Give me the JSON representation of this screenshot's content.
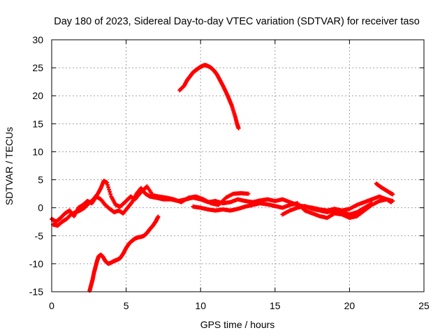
{
  "chart_data": {
    "type": "scatter",
    "title": "Day 180 of 2023, Sidereal Day-to-day VTEC variation (SDTVAR) for receiver taso",
    "xlabel": "GPS time / hours",
    "ylabel": "SDTVAR / TECUs",
    "xlim": [
      0,
      25
    ],
    "ylim": [
      -15,
      30
    ],
    "x_ticks": [
      0,
      5,
      10,
      15,
      20,
      25
    ],
    "y_ticks": [
      -15,
      -10,
      -5,
      0,
      5,
      10,
      15,
      20,
      25,
      30
    ],
    "grid": true,
    "marker": "plus",
    "series_color": "#ff0000",
    "series": [
      {
        "name": "track-main-band-a",
        "points": [
          [
            0,
            -2
          ],
          [
            0.3,
            -2.5
          ],
          [
            0.6,
            -1.8
          ],
          [
            0.9,
            -1
          ],
          [
            1.2,
            -0.5
          ],
          [
            1.5,
            -1.5
          ],
          [
            1.8,
            0
          ],
          [
            2.1,
            0.5
          ],
          [
            2.4,
            1.2
          ],
          [
            2.7,
            0.8
          ],
          [
            3.0,
            2
          ],
          [
            3.3,
            1.5
          ],
          [
            3.6,
            0.5
          ],
          [
            3.9,
            -0.2
          ],
          [
            4.2,
            -0.8
          ],
          [
            4.5,
            -0.5
          ],
          [
            4.8,
            -1
          ],
          [
            5.1,
            0
          ],
          [
            5.4,
            1
          ],
          [
            5.7,
            2.5
          ],
          [
            6.0,
            3.5
          ],
          [
            6.3,
            2.5
          ],
          [
            6.6,
            2
          ],
          [
            7.0,
            1.8
          ],
          [
            7.5,
            1.5
          ],
          [
            8.0,
            1.5
          ],
          [
            8.5,
            1.2
          ],
          [
            9.0,
            1.5
          ],
          [
            9.5,
            1.8
          ],
          [
            10.0,
            1.5
          ],
          [
            10.5,
            1
          ],
          [
            11.0,
            1.2
          ],
          [
            11.5,
            0.8
          ],
          [
            12.0,
            1
          ],
          [
            12.5,
            1.5
          ],
          [
            13.0,
            1.2
          ],
          [
            13.5,
            1
          ],
          [
            14.0,
            1.3
          ],
          [
            14.5,
            1.5
          ],
          [
            15.0,
            1.2
          ],
          [
            15.5,
            1.5
          ],
          [
            16.0,
            1
          ],
          [
            16.5,
            0.5
          ],
          [
            17.0,
            0.2
          ],
          [
            17.5,
            0
          ],
          [
            18.0,
            -0.3
          ],
          [
            18.5,
            -0.5
          ],
          [
            19.0,
            -0.2
          ],
          [
            19.5,
            -0.5
          ],
          [
            20.0,
            -0.2
          ],
          [
            20.5,
            0.5
          ],
          [
            21.0,
            1
          ],
          [
            21.5,
            1.5
          ],
          [
            22.0,
            2
          ],
          [
            22.5,
            1.5
          ],
          [
            22.8,
            1
          ]
        ]
      },
      {
        "name": "track-main-band-b",
        "points": [
          [
            0.1,
            -3
          ],
          [
            0.4,
            -3.2
          ],
          [
            0.7,
            -2.5
          ],
          [
            1.0,
            -2
          ],
          [
            1.3,
            -1.2
          ],
          [
            1.6,
            -0.8
          ],
          [
            1.9,
            -0.5
          ],
          [
            2.2,
            0
          ],
          [
            2.5,
            0.8
          ],
          [
            2.8,
            1.5
          ],
          [
            3.1,
            2.5
          ],
          [
            3.3,
            3.5
          ],
          [
            3.5,
            4.8
          ],
          [
            3.7,
            4.5
          ],
          [
            4.0,
            2
          ],
          [
            4.3,
            0.5
          ],
          [
            4.6,
            0.2
          ],
          [
            5.0,
            1.2
          ],
          [
            5.3,
            2
          ],
          [
            5.6,
            1.5
          ],
          [
            6.0,
            2.8
          ],
          [
            6.4,
            3.8
          ],
          [
            6.8,
            2.2
          ],
          [
            7.2,
            2
          ],
          [
            7.7,
            1.8
          ],
          [
            8.2,
            1.5
          ],
          [
            8.7,
            1
          ],
          [
            9.2,
            1.8
          ],
          [
            9.7,
            2
          ],
          [
            10.2,
            1.5
          ],
          [
            10.7,
            0.8
          ],
          [
            11.2,
            0.5
          ],
          [
            11.7,
            1.8
          ],
          [
            12.2,
            2.5
          ],
          [
            12.7,
            2.6
          ],
          [
            13.2,
            2.5
          ]
        ]
      },
      {
        "name": "track-main-band-c",
        "points": [
          [
            9.5,
            0.2
          ],
          [
            10.0,
            0
          ],
          [
            10.5,
            -0.3
          ],
          [
            11.0,
            -0.5
          ],
          [
            11.5,
            -0.3
          ],
          [
            12.0,
            -0.5
          ],
          [
            12.5,
            -0.2
          ],
          [
            13.0,
            0.2
          ],
          [
            13.5,
            0.5
          ],
          [
            14.0,
            0.8
          ],
          [
            14.5,
            0.6
          ],
          [
            15.0,
            0.3
          ],
          [
            15.5,
            0
          ],
          [
            16.0,
            0.5
          ],
          [
            16.5,
            0.8
          ],
          [
            17.0,
            -0.5
          ],
          [
            17.5,
            -1
          ],
          [
            18.0,
            -1.5
          ],
          [
            18.5,
            -1.8
          ],
          [
            19.0,
            -1
          ],
          [
            19.5,
            -1.2
          ],
          [
            20.0,
            -1.8
          ],
          [
            20.5,
            -1.5
          ],
          [
            21.0,
            -0.5
          ],
          [
            21.5,
            0.5
          ],
          [
            22.0,
            1.2
          ],
          [
            22.5,
            1.5
          ],
          [
            22.9,
            1.2
          ]
        ]
      },
      {
        "name": "track-main-band-d",
        "points": [
          [
            15.5,
            -1.2
          ],
          [
            16.0,
            -0.5
          ],
          [
            16.5,
            0
          ],
          [
            17.0,
            0.3
          ],
          [
            17.5,
            -0.2
          ],
          [
            18.0,
            -0.5
          ],
          [
            18.5,
            -0.8
          ],
          [
            19.0,
            -0.5
          ],
          [
            19.5,
            -0.8
          ],
          [
            20.0,
            -1.2
          ],
          [
            20.5,
            -0.8
          ],
          [
            21.0,
            0
          ],
          [
            21.5,
            0.8
          ]
        ]
      },
      {
        "name": "track-late-tail",
        "points": [
          [
            21.8,
            4.3
          ],
          [
            22.1,
            3.7
          ],
          [
            22.4,
            3.2
          ],
          [
            22.7,
            2.7
          ],
          [
            22.9,
            2.4
          ]
        ]
      },
      {
        "name": "track-rising-arc",
        "points": [
          [
            2.55,
            -14.8
          ],
          [
            2.65,
            -13.8
          ],
          [
            2.75,
            -12.8
          ],
          [
            2.85,
            -11.5
          ],
          [
            2.95,
            -10.5
          ],
          [
            3.05,
            -9.5
          ],
          [
            3.15,
            -8.7
          ],
          [
            3.3,
            -8.4
          ],
          [
            3.45,
            -8.8
          ],
          [
            3.6,
            -9.5
          ],
          [
            3.8,
            -10
          ],
          [
            4.0,
            -9.8
          ],
          [
            4.2,
            -9.5
          ],
          [
            4.4,
            -9.3
          ],
          [
            4.6,
            -9
          ],
          [
            4.8,
            -8.2
          ],
          [
            5.0,
            -7.2
          ],
          [
            5.2,
            -6.4
          ],
          [
            5.4,
            -5.9
          ],
          [
            5.6,
            -5.5
          ],
          [
            5.8,
            -5.3
          ],
          [
            6.0,
            -5.2
          ],
          [
            6.2,
            -5
          ],
          [
            6.4,
            -4.5
          ],
          [
            6.6,
            -3.8
          ],
          [
            6.8,
            -3.2
          ],
          [
            7.0,
            -2.4
          ],
          [
            7.15,
            -1.6
          ]
        ]
      },
      {
        "name": "track-high-arc",
        "points": [
          [
            8.6,
            21
          ],
          [
            8.9,
            21.8
          ],
          [
            9.1,
            22.8
          ],
          [
            9.3,
            23.5
          ],
          [
            9.5,
            24.2
          ],
          [
            9.7,
            24.6
          ],
          [
            9.9,
            25
          ],
          [
            10.1,
            25.3
          ],
          [
            10.3,
            25.5
          ],
          [
            10.5,
            25.3
          ],
          [
            10.7,
            25
          ],
          [
            10.9,
            24.5
          ],
          [
            11.1,
            23.8
          ],
          [
            11.3,
            22.8
          ],
          [
            11.5,
            21.8
          ],
          [
            11.7,
            20.7
          ],
          [
            11.9,
            19.5
          ],
          [
            12.1,
            18.2
          ],
          [
            12.3,
            16.5
          ],
          [
            12.45,
            15
          ],
          [
            12.55,
            14.2
          ]
        ]
      }
    ]
  }
}
